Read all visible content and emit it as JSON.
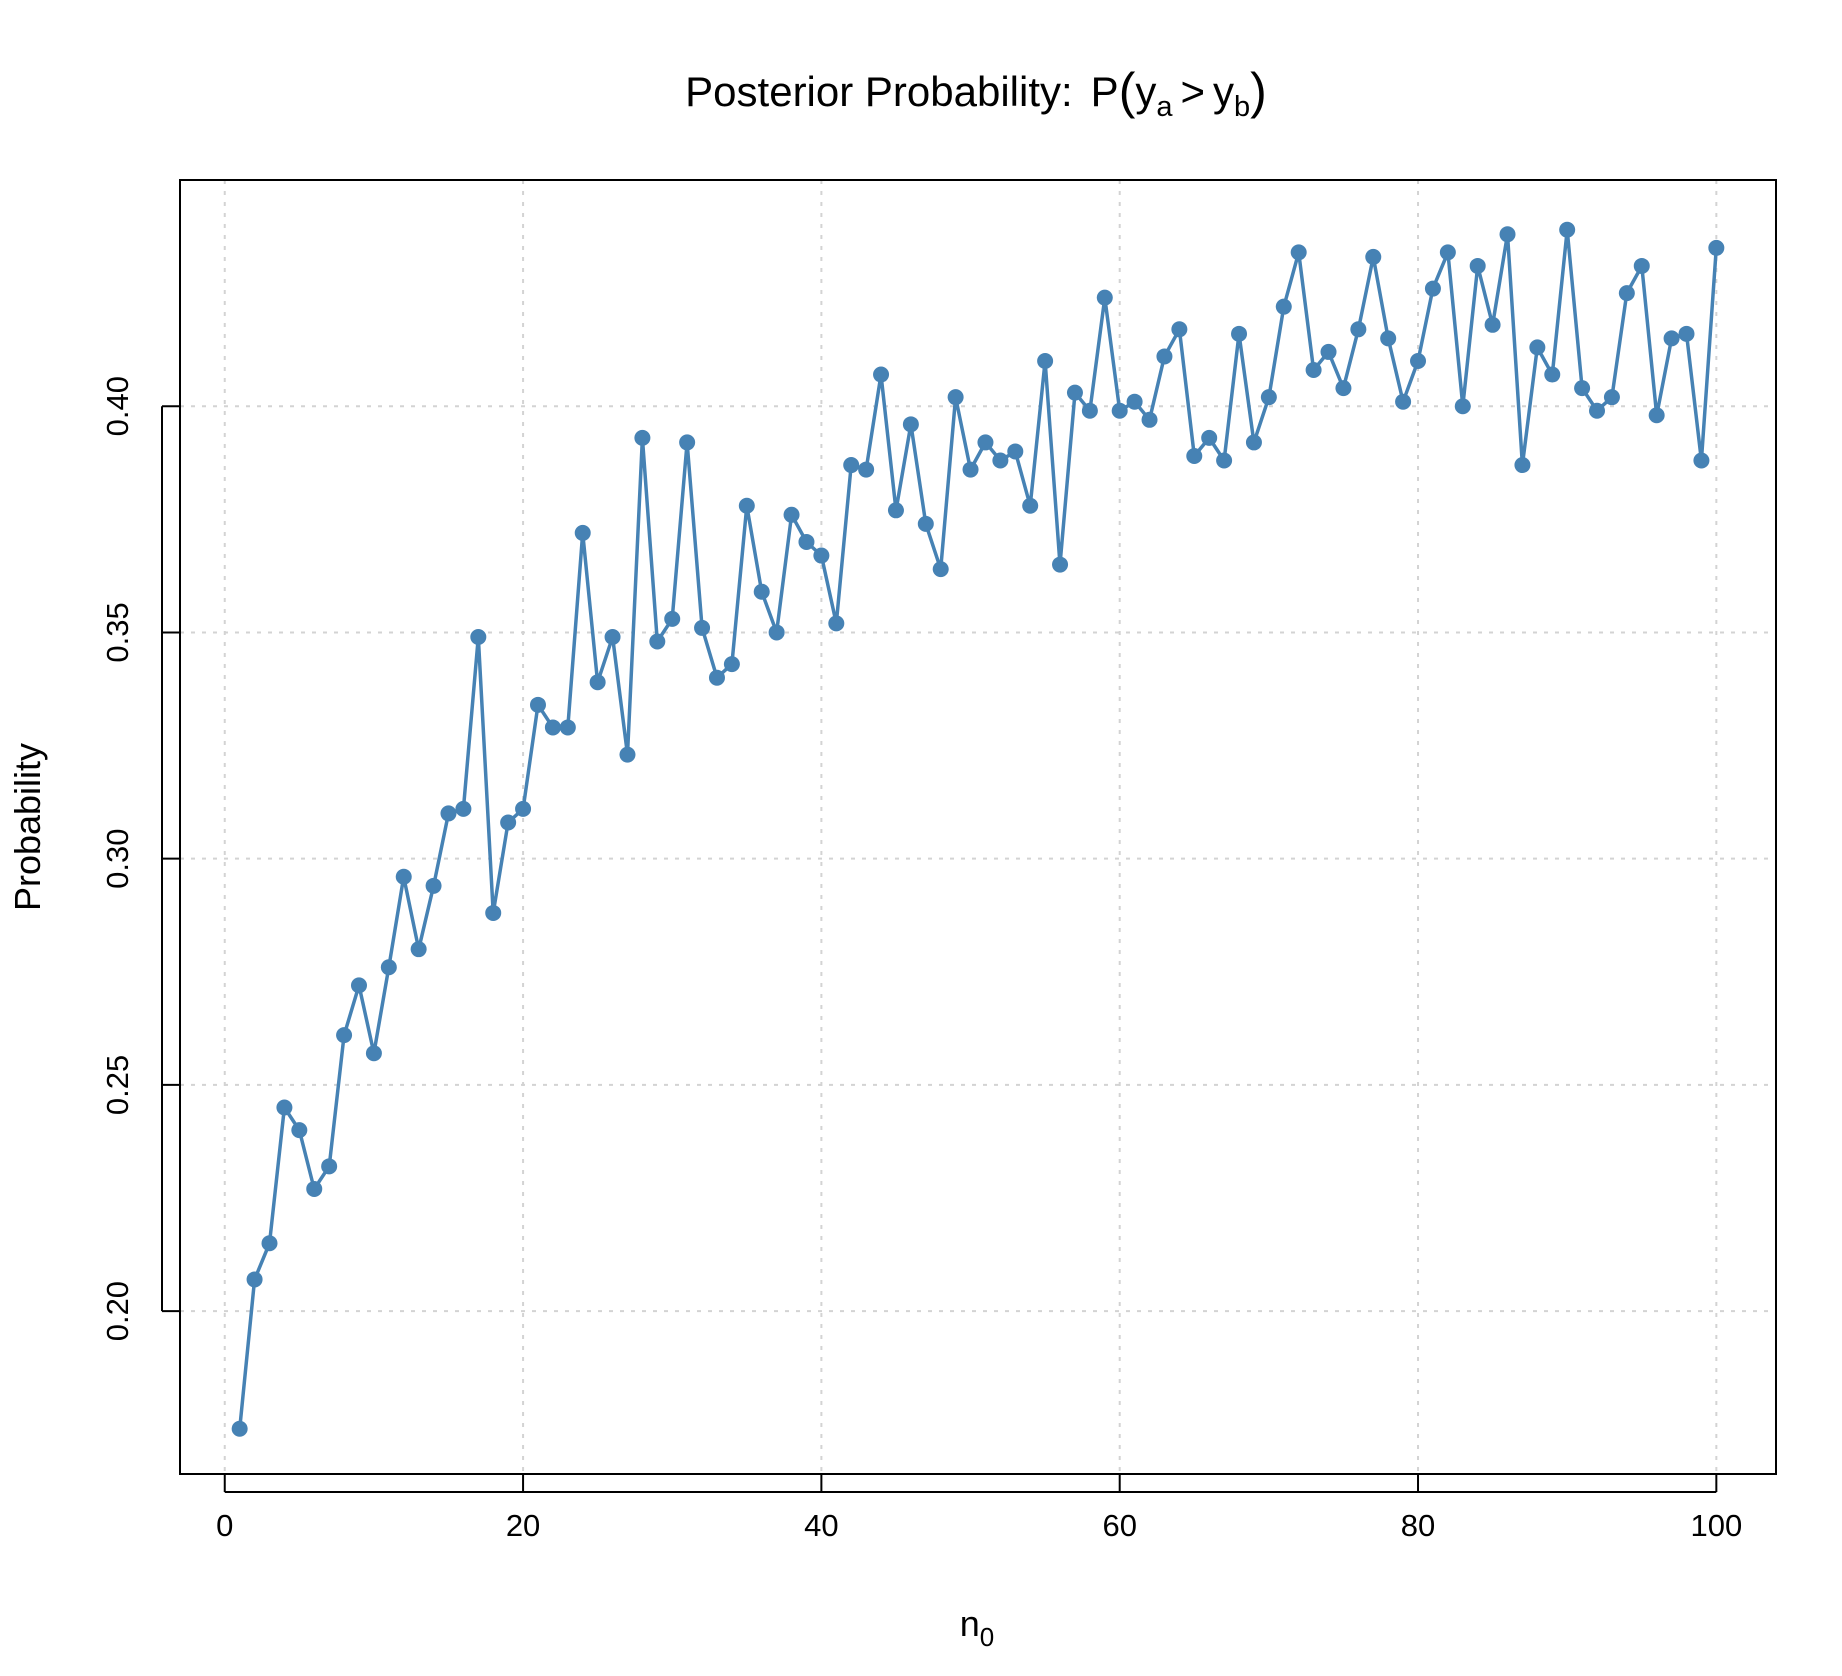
{
  "chart_data": {
    "type": "line",
    "title": {
      "prefix": "Posterior Probability:",
      "p": "P",
      "open": "(",
      "y1": "y",
      "sub1": "a",
      "op": ">",
      "y2": "y",
      "sub2": "b",
      "close": ")"
    },
    "xlabel": {
      "main": "n",
      "sub": "0"
    },
    "ylabel": "Probability",
    "xlim": [
      -3,
      104
    ],
    "ylim": [
      0.164,
      0.45
    ],
    "x_ticks": [
      0,
      20,
      40,
      60,
      80,
      100
    ],
    "x_tick_labels": [
      "0",
      "20",
      "40",
      "60",
      "80",
      "100"
    ],
    "y_ticks": [
      0.2,
      0.25,
      0.3,
      0.35,
      0.4
    ],
    "y_tick_labels": [
      "0.20",
      "0.25",
      "0.30",
      "0.35",
      "0.40"
    ],
    "grid": true,
    "color": "#4682B4",
    "series": [
      {
        "name": "Posterior Probability",
        "x": [
          1,
          2,
          3,
          4,
          5,
          6,
          7,
          8,
          9,
          10,
          11,
          12,
          13,
          14,
          15,
          16,
          17,
          18,
          19,
          20,
          21,
          22,
          23,
          24,
          25,
          26,
          27,
          28,
          29,
          30,
          31,
          32,
          33,
          34,
          35,
          36,
          37,
          38,
          39,
          40,
          41,
          42,
          43,
          44,
          45,
          46,
          47,
          48,
          49,
          50,
          51,
          52,
          53,
          54,
          55,
          56,
          57,
          58,
          59,
          60,
          61,
          62,
          63,
          64,
          65,
          66,
          67,
          68,
          69,
          70,
          71,
          72,
          73,
          74,
          75,
          76,
          77,
          78,
          79,
          80,
          81,
          82,
          83,
          84,
          85,
          86,
          87,
          88,
          89,
          90,
          91,
          92,
          93,
          94,
          95,
          96,
          97,
          98,
          99,
          100
        ],
        "values": [
          0.174,
          0.207,
          0.215,
          0.245,
          0.24,
          0.227,
          0.232,
          0.261,
          0.272,
          0.257,
          0.276,
          0.296,
          0.28,
          0.294,
          0.31,
          0.311,
          0.349,
          0.288,
          0.308,
          0.311,
          0.334,
          0.329,
          0.329,
          0.372,
          0.339,
          0.349,
          0.323,
          0.393,
          0.348,
          0.353,
          0.392,
          0.351,
          0.34,
          0.343,
          0.378,
          0.359,
          0.35,
          0.376,
          0.37,
          0.367,
          0.352,
          0.387,
          0.386,
          0.407,
          0.377,
          0.396,
          0.374,
          0.364,
          0.402,
          0.386,
          0.392,
          0.388,
          0.39,
          0.378,
          0.41,
          0.365,
          0.403,
          0.399,
          0.424,
          0.399,
          0.401,
          0.397,
          0.411,
          0.417,
          0.389,
          0.393,
          0.388,
          0.416,
          0.392,
          0.402,
          0.422,
          0.434,
          0.408,
          0.412,
          0.404,
          0.417,
          0.433,
          0.415,
          0.401,
          0.41,
          0.426,
          0.434,
          0.4,
          0.431,
          0.418,
          0.438,
          0.387,
          0.413,
          0.407,
          0.439,
          0.404,
          0.399,
          0.402,
          0.425,
          0.431,
          0.398,
          0.415,
          0.416,
          0.388,
          0.435
        ]
      }
    ]
  }
}
